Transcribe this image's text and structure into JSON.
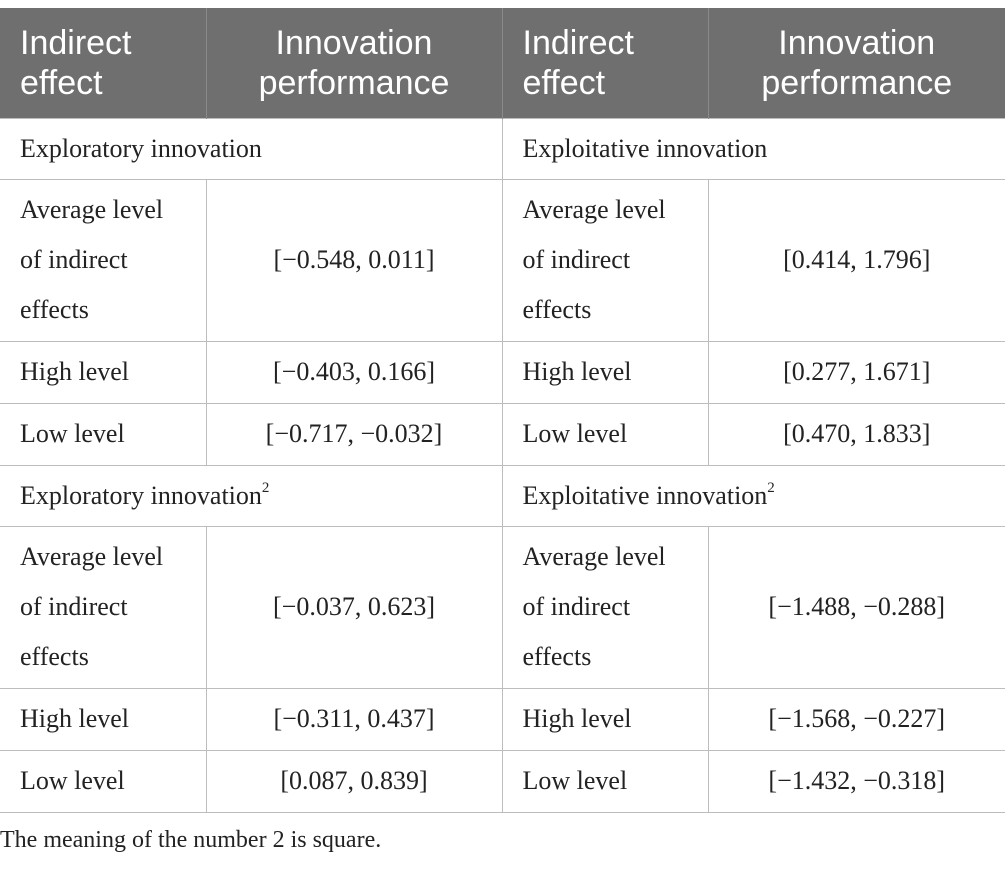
{
  "table": {
    "headers": [
      "Indirect effect",
      "Innovation performance",
      "Indirect effect",
      "Innovation performance"
    ],
    "groups": [
      {
        "left_title": "Exploratory innovation",
        "left_sup": "",
        "right_title": "Exploitative innovation",
        "right_sup": "",
        "rows": [
          {
            "left_label": "Average level of indirect effects",
            "left_value": "[−0.548, 0.011]",
            "right_label": "Average level of indirect effects",
            "right_value": "[0.414, 1.796]"
          },
          {
            "left_label": "High level",
            "left_value": "[−0.403, 0.166]",
            "right_label": "High level",
            "right_value": "[0.277, 1.671]"
          },
          {
            "left_label": "Low level",
            "left_value": "[−0.717, −0.032]",
            "right_label": "Low level",
            "right_value": "[0.470, 1.833]"
          }
        ]
      },
      {
        "left_title": "Exploratory innovation",
        "left_sup": "2",
        "right_title": "Exploitative innovation",
        "right_sup": "2",
        "rows": [
          {
            "left_label": "Average level of indirect effects",
            "left_value": "[−0.037, 0.623]",
            "right_label": "Average level of indirect effects",
            "right_value": "[−1.488, −0.288]"
          },
          {
            "left_label": "High level",
            "left_value": "[−0.311, 0.437]",
            "right_label": "High level",
            "right_value": "[−1.568, −0.227]"
          },
          {
            "left_label": "Low level",
            "left_value": "[0.087, 0.839]",
            "right_label": "Low level",
            "right_value": "[−1.432, −0.318]"
          }
        ]
      }
    ]
  },
  "footnote": "The meaning of the number 2 is square."
}
